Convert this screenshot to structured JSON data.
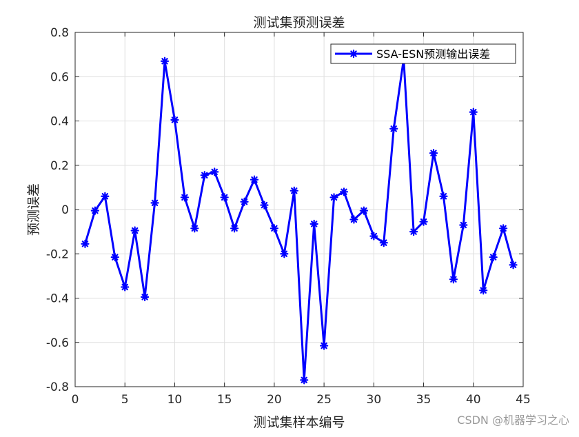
{
  "watermark": "CSDN @机器学习之心",
  "colors": {
    "series": "#0000ff",
    "axis": "#262626",
    "grid": "#dedede",
    "background": "#ffffff"
  },
  "chart_data": {
    "type": "line",
    "title": "测试集预测误差",
    "xlabel": "测试集样本编号",
    "ylabel": "预测误差",
    "xlim": [
      0,
      45
    ],
    "ylim": [
      -0.8,
      0.8
    ],
    "xticks": [
      0,
      5,
      10,
      15,
      20,
      25,
      30,
      35,
      40,
      45
    ],
    "yticks": [
      -0.8,
      -0.6,
      -0.4,
      -0.2,
      0,
      0.2,
      0.4,
      0.6,
      0.8
    ],
    "xtick_labels": [
      "0",
      "5",
      "10",
      "15",
      "20",
      "25",
      "30",
      "35",
      "40",
      "45"
    ],
    "ytick_labels": [
      "-0.8",
      "-0.6",
      "-0.4",
      "-0.2",
      "0",
      "0.2",
      "0.4",
      "0.6",
      "0.8"
    ],
    "grid": true,
    "legend_position": "top-right",
    "series": [
      {
        "name": "SSA-ESN预测输出误差",
        "marker": "asterisk",
        "x": [
          1,
          2,
          3,
          4,
          5,
          6,
          7,
          8,
          9,
          10,
          11,
          12,
          13,
          14,
          15,
          16,
          17,
          18,
          19,
          20,
          21,
          22,
          23,
          24,
          25,
          26,
          27,
          28,
          29,
          30,
          31,
          32,
          33,
          34,
          35,
          36,
          37,
          38,
          39,
          40,
          41,
          42,
          43,
          44
        ],
        "values": [
          -0.155,
          -0.005,
          0.06,
          -0.215,
          -0.35,
          -0.095,
          -0.395,
          0.03,
          0.67,
          0.405,
          0.055,
          -0.085,
          0.155,
          0.17,
          0.055,
          -0.085,
          0.035,
          0.135,
          0.02,
          -0.085,
          -0.2,
          0.085,
          -0.77,
          -0.065,
          -0.615,
          0.055,
          0.08,
          -0.045,
          -0.005,
          -0.12,
          -0.15,
          0.365,
          0.68,
          -0.1,
          -0.055,
          0.255,
          0.06,
          -0.315,
          -0.07,
          0.44,
          -0.365,
          -0.215,
          -0.085,
          -0.25
        ]
      }
    ]
  }
}
